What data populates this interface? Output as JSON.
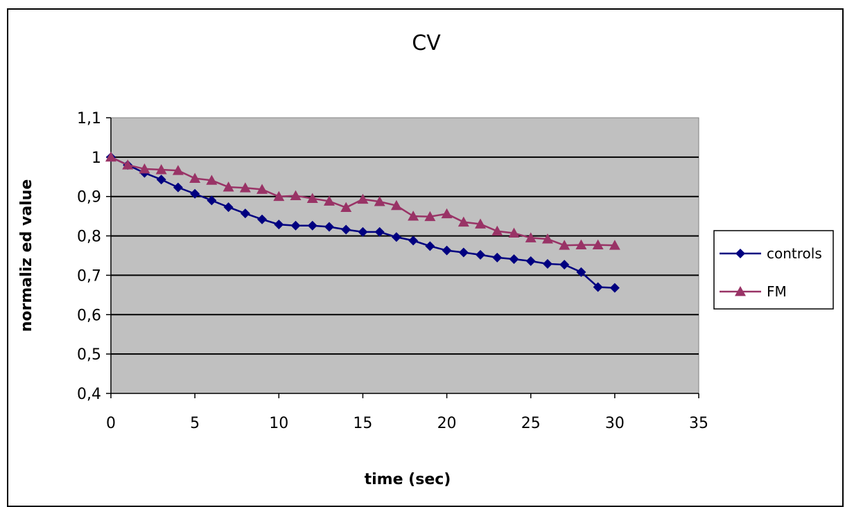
{
  "chart_data": {
    "type": "line",
    "title": "CV",
    "xlabel": "time (sec)",
    "ylabel": "normaliz ed value",
    "xlim": [
      0,
      35
    ],
    "ylim": [
      0.4,
      1.1
    ],
    "xticks": [
      0,
      5,
      10,
      15,
      20,
      25,
      30,
      35
    ],
    "xtick_labels": [
      "0",
      "5",
      "10",
      "15",
      "20",
      "25",
      "30",
      "35"
    ],
    "yticks": [
      0.4,
      0.5,
      0.6,
      0.7,
      0.8,
      0.9,
      1.0,
      1.1
    ],
    "ytick_labels": [
      "0,4",
      "0,5",
      "0,6",
      "0,7",
      "0,8",
      "0,9",
      "1",
      "1,1"
    ],
    "grid": "horizontal",
    "legend_position": "right",
    "plot_background": "#c0c0c0",
    "x": [
      0,
      1,
      2,
      3,
      4,
      5,
      6,
      7,
      8,
      9,
      10,
      11,
      12,
      13,
      14,
      15,
      16,
      17,
      18,
      19,
      20,
      21,
      22,
      23,
      24,
      25,
      26,
      27,
      28,
      29,
      30
    ],
    "series": [
      {
        "name": "controls",
        "color": "#000080",
        "marker": "diamond",
        "values": [
          1.0,
          0.98,
          0.96,
          0.943,
          0.923,
          0.907,
          0.89,
          0.873,
          0.857,
          0.842,
          0.829,
          0.826,
          0.826,
          0.823,
          0.816,
          0.81,
          0.81,
          0.797,
          0.788,
          0.774,
          0.763,
          0.758,
          0.752,
          0.745,
          0.741,
          0.736,
          0.729,
          0.727,
          0.708,
          0.67,
          0.668
        ]
      },
      {
        "name": "FM",
        "color": "#993366",
        "marker": "triangle",
        "values": [
          1.0,
          0.98,
          0.97,
          0.968,
          0.966,
          0.946,
          0.941,
          0.924,
          0.922,
          0.918,
          0.9,
          0.902,
          0.895,
          0.888,
          0.872,
          0.893,
          0.887,
          0.877,
          0.85,
          0.849,
          0.856,
          0.835,
          0.83,
          0.812,
          0.807,
          0.795,
          0.792,
          0.776,
          0.777,
          0.777,
          0.776
        ]
      }
    ]
  }
}
